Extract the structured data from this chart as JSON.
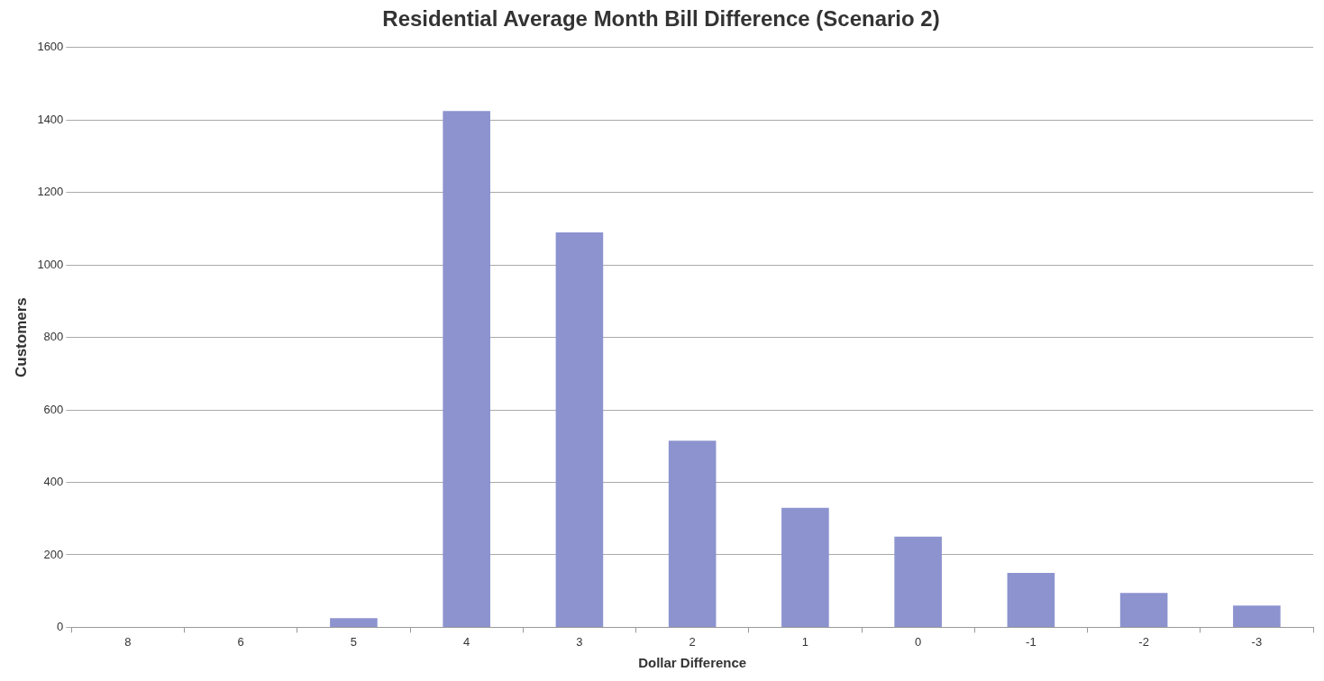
{
  "chart_data": {
    "type": "bar",
    "title": "Residential Average Month Bill Difference (Scenario 2)",
    "xlabel": "Dollar Difference",
    "ylabel": "Customers",
    "categories": [
      "8",
      "6",
      "5",
      "4",
      "3",
      "2",
      "1",
      "0",
      "-1",
      "-2",
      "-3"
    ],
    "values": [
      0,
      0,
      25,
      1425,
      1090,
      515,
      330,
      250,
      150,
      95,
      60
    ],
    "color": "#8c93cf",
    "ylim": [
      0,
      1600
    ],
    "yticks": [
      0,
      200,
      400,
      600,
      800,
      1000,
      1200,
      1400,
      1600
    ],
    "grid": "y",
    "legend": false
  }
}
